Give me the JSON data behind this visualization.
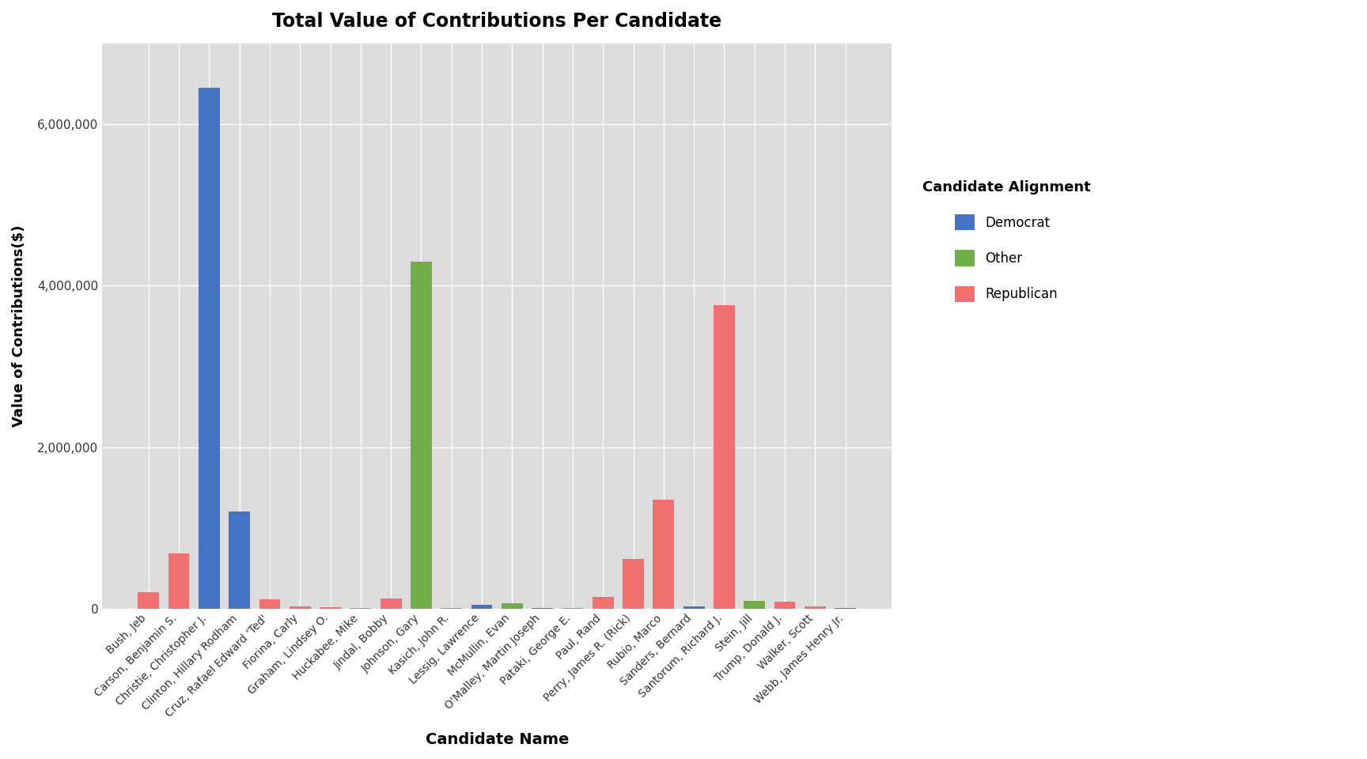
{
  "title": "Total Value of Contributions Per Candidate",
  "xlabel": "Candidate Name",
  "ylabel": "Value of Contributions($)",
  "legend_title": "Candidate Alignment",
  "plot_bg_color": "#DCDCDC",
  "fig_bg_color": "#FFFFFF",
  "candidates": [
    "Bush, Jeb",
    "Carson, Benjamin S.",
    "Christie, Christopher J.",
    "Clinton, Hillary Rodham",
    "Cruz, Rafael Edward 'Ted'",
    "Fiorina, Carly",
    "Graham, Lindsey O.",
    "Huckabee, Mike",
    "Jindal, Bobby",
    "Johnson, Gary",
    "Kasich, John R.",
    "Lessig, Lawrence",
    "McMullin, Evan",
    "O'Malley, Martin Joseph",
    "Pataki, George E.",
    "Paul, Rand",
    "Perry, James R. (Rick)",
    "Rubio, Marco",
    "Sanders, Bernard",
    "Santorum, Richard J.",
    "Stein, Jill",
    "Trump, Donald J.",
    "Walker, Scott",
    "Webb, James Henry Jr."
  ],
  "values": [
    200000,
    680000,
    6450000,
    1200000,
    120000,
    30000,
    15000,
    10000,
    130000,
    4300000,
    10000,
    50000,
    70000,
    10000,
    10000,
    150000,
    620000,
    1350000,
    30000,
    3760000,
    100000,
    90000,
    30000,
    10000
  ],
  "alignments": [
    "Republican",
    "Republican",
    "Democrat",
    "Democrat",
    "Republican",
    "Republican",
    "Republican",
    "Republican",
    "Republican",
    "Other",
    "Republican",
    "Democrat",
    "Other",
    "Democrat",
    "Republican",
    "Republican",
    "Republican",
    "Republican",
    "Democrat",
    "Republican",
    "Other",
    "Republican",
    "Republican",
    "Democrat"
  ],
  "colors": {
    "Democrat": "#4472C4",
    "Other": "#70AD47",
    "Republican": "#F07070"
  },
  "ylim": [
    0,
    7000000
  ],
  "yticks": [
    0,
    2000000,
    4000000,
    6000000
  ],
  "ytick_labels": [
    "0",
    "2,000,000",
    "4,000,000",
    "6,000,000"
  ]
}
